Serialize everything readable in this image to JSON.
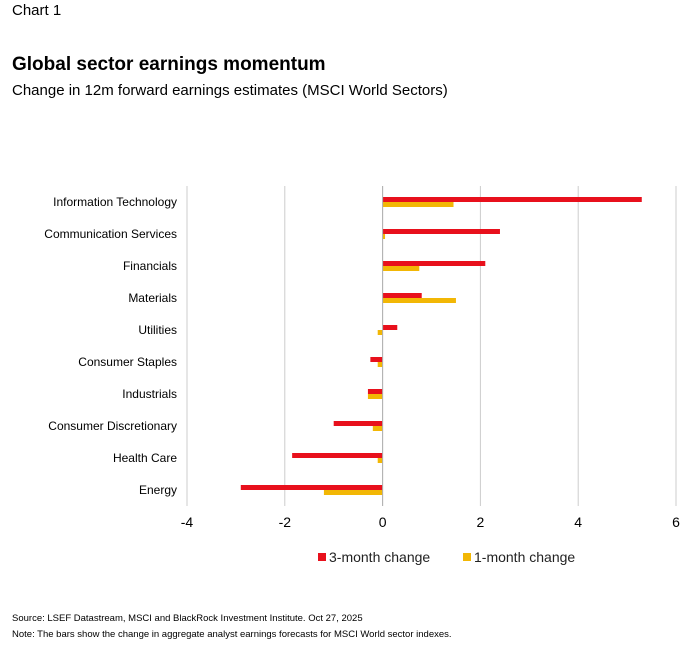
{
  "chart_label": "Chart 1",
  "colors": {
    "series1": "#e8101c",
    "series2": "#f2b705",
    "grid": "#cccccc",
    "axis": "#b0b0b0"
  },
  "chart_data": {
    "type": "bar",
    "orientation": "horizontal",
    "title": "Global sector earnings momentum",
    "subtitle": "Change in 12m forward earnings estimates (MSCI World Sectors)",
    "categories": [
      "Information Technology",
      "Communication Services",
      "Financials",
      "Materials",
      "Utilities",
      "Consumer Staples",
      "Industrials",
      "Consumer Discretionary",
      "Health Care",
      "Energy"
    ],
    "series": [
      {
        "name": "3-month change",
        "values": [
          5.3,
          2.4,
          2.1,
          0.8,
          0.3,
          -0.25,
          -0.3,
          -1.0,
          -1.85,
          -2.9
        ]
      },
      {
        "name": "1-month change",
        "values": [
          1.45,
          0.05,
          0.75,
          1.5,
          -0.1,
          -0.1,
          -0.3,
          -0.2,
          -0.1,
          -1.2
        ]
      }
    ],
    "xlim": [
      -4,
      6
    ],
    "xticks": [
      "-4",
      "-2",
      "0",
      "2",
      "4",
      "6"
    ],
    "legend": "bottom-center"
  },
  "footer": {
    "source": "Source: LSEF Datastream, MSCI and BlackRock Investment Institute. Oct 27, 2025",
    "note": "Note: The bars show the change in aggregate analyst earnings forecasts for MSCI World sector indexes."
  }
}
